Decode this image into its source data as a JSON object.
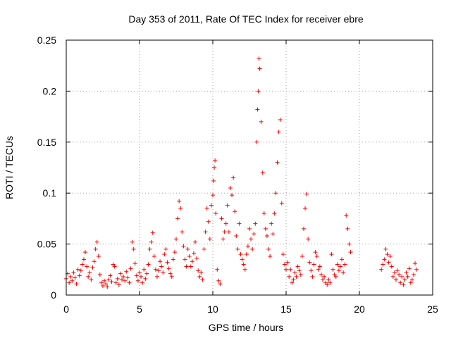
{
  "chart_data": {
    "type": "scatter",
    "title": "Day 353 of 2011, Rate Of TEC Index for receiver ebre",
    "xlabel": "GPS time / hours",
    "ylabel": "ROTI / TECUs",
    "xlim": [
      0,
      25
    ],
    "ylim": [
      0,
      0.25
    ],
    "grid": true,
    "marker": "plus",
    "color": "#ff0000",
    "x_ticks": [
      0,
      5,
      10,
      15,
      20,
      25
    ],
    "x_tick_labels": [
      "0",
      "5",
      "10",
      "15",
      "20",
      "25"
    ],
    "y_ticks": [
      0,
      0.05,
      0.1,
      0.15,
      0.2,
      0.25
    ],
    "y_tick_labels": [
      "0",
      "0.05",
      "0.1",
      "0.15",
      "0.2",
      "0.25"
    ],
    "series": [
      {
        "name": "ROTI",
        "points": [
          [
            0.0,
            0.016
          ],
          [
            0.1,
            0.021
          ],
          [
            0.2,
            0.012
          ],
          [
            0.3,
            0.018
          ],
          [
            0.4,
            0.014
          ],
          [
            0.5,
            0.022
          ],
          [
            0.6,
            0.017
          ],
          [
            0.7,
            0.011
          ],
          [
            0.8,
            0.025
          ],
          [
            0.9,
            0.019
          ],
          [
            1.0,
            0.024
          ],
          [
            1.1,
            0.03
          ],
          [
            1.2,
            0.035
          ],
          [
            1.3,
            0.042
          ],
          [
            1.4,
            0.028
          ],
          [
            1.5,
            0.018
          ],
          [
            1.6,
            0.022
          ],
          [
            1.7,
            0.015
          ],
          [
            1.8,
            0.027
          ],
          [
            1.9,
            0.033
          ],
          [
            2.0,
            0.045
          ],
          [
            2.1,
            0.052
          ],
          [
            2.2,
            0.038
          ],
          [
            2.3,
            0.02
          ],
          [
            2.4,
            0.012
          ],
          [
            2.5,
            0.009
          ],
          [
            2.6,
            0.014
          ],
          [
            2.7,
            0.011
          ],
          [
            2.8,
            0.008
          ],
          [
            2.9,
            0.015
          ],
          [
            3.0,
            0.019
          ],
          [
            3.1,
            0.013
          ],
          [
            3.2,
            0.03
          ],
          [
            3.3,
            0.028
          ],
          [
            3.4,
            0.012
          ],
          [
            3.5,
            0.016
          ],
          [
            3.6,
            0.01
          ],
          [
            3.7,
            0.021
          ],
          [
            3.8,
            0.015
          ],
          [
            3.9,
            0.018
          ],
          [
            4.0,
            0.014
          ],
          [
            4.1,
            0.023
          ],
          [
            4.2,
            0.017
          ],
          [
            4.3,
            0.012
          ],
          [
            4.4,
            0.026
          ],
          [
            4.5,
            0.052
          ],
          [
            4.6,
            0.045
          ],
          [
            4.7,
            0.031
          ],
          [
            4.8,
            0.019
          ],
          [
            4.9,
            0.014
          ],
          [
            5.0,
            0.022
          ],
          [
            5.1,
            0.018
          ],
          [
            5.2,
            0.012
          ],
          [
            5.3,
            0.025
          ],
          [
            5.4,
            0.016
          ],
          [
            5.5,
            0.021
          ],
          [
            5.6,
            0.03
          ],
          [
            5.7,
            0.045
          ],
          [
            5.8,
            0.052
          ],
          [
            5.9,
            0.061
          ],
          [
            6.0,
            0.038
          ],
          [
            6.1,
            0.025
          ],
          [
            6.2,
            0.018
          ],
          [
            6.3,
            0.024
          ],
          [
            6.4,
            0.033
          ],
          [
            6.5,
            0.028
          ],
          [
            6.6,
            0.022
          ],
          [
            6.7,
            0.04
          ],
          [
            6.8,
            0.045
          ],
          [
            6.9,
            0.032
          ],
          [
            7.0,
            0.026
          ],
          [
            7.1,
            0.021
          ],
          [
            7.2,
            0.018
          ],
          [
            7.3,
            0.035
          ],
          [
            7.4,
            0.042
          ],
          [
            7.5,
            0.055
          ],
          [
            7.6,
            0.075
          ],
          [
            7.7,
            0.092
          ],
          [
            7.8,
            0.085
          ],
          [
            7.9,
            0.062
          ],
          [
            8.0,
            0.048
          ],
          [
            8.1,
            0.035
          ],
          [
            8.2,
            0.028
          ],
          [
            8.3,
            0.045
          ],
          [
            8.4,
            0.038
          ],
          [
            8.5,
            0.028
          ],
          [
            8.6,
            0.033
          ],
          [
            8.7,
            0.041
          ],
          [
            8.8,
            0.052
          ],
          [
            8.9,
            0.036
          ],
          [
            9.0,
            0.024
          ],
          [
            9.1,
            0.018
          ],
          [
            9.2,
            0.022
          ],
          [
            9.3,
            0.015
          ],
          [
            9.4,
            0.045
          ],
          [
            9.5,
            0.062
          ],
          [
            9.6,
            0.085
          ],
          [
            9.7,
            0.072
          ],
          [
            9.8,
            0.055
          ],
          [
            9.9,
            0.088
          ],
          [
            10.0,
            0.098
          ],
          [
            10.05,
            0.112
          ],
          [
            10.1,
            0.125
          ],
          [
            10.15,
            0.132
          ],
          [
            10.2,
            0.08
          ],
          [
            10.3,
            0.025
          ],
          [
            10.4,
            0.014
          ],
          [
            10.5,
            0.011
          ],
          [
            10.6,
            0.075
          ],
          [
            10.7,
            0.055
          ],
          [
            10.8,
            0.062
          ],
          [
            10.9,
            0.07
          ],
          [
            11.0,
            0.088
          ],
          [
            11.1,
            0.062
          ],
          [
            11.2,
            0.105
          ],
          [
            11.3,
            0.098
          ],
          [
            11.4,
            0.115
          ],
          [
            11.5,
            0.082
          ],
          [
            11.6,
            0.058
          ],
          [
            11.7,
            0.045
          ],
          [
            11.8,
            0.07
          ],
          [
            11.9,
            0.04
          ],
          [
            12.0,
            0.035
          ],
          [
            12.1,
            0.03
          ],
          [
            12.2,
            0.025
          ],
          [
            12.3,
            0.04
          ],
          [
            12.4,
            0.048
          ],
          [
            12.5,
            0.065
          ],
          [
            12.6,
            0.055
          ],
          [
            12.7,
            0.045
          ],
          [
            12.8,
            0.06
          ],
          [
            12.9,
            0.07
          ],
          [
            13.0,
            0.15
          ],
          [
            13.05,
            0.182
          ],
          [
            13.1,
            0.2
          ],
          [
            13.15,
            0.232
          ],
          [
            13.2,
            0.222
          ],
          [
            13.3,
            0.17
          ],
          [
            13.4,
            0.12
          ],
          [
            13.5,
            0.08
          ],
          [
            13.6,
            0.065
          ],
          [
            13.7,
            0.058
          ],
          [
            13.8,
            0.045
          ],
          [
            13.9,
            0.038
          ],
          [
            14.0,
            0.07
          ],
          [
            14.1,
            0.06
          ],
          [
            14.2,
            0.08
          ],
          [
            14.3,
            0.1
          ],
          [
            14.4,
            0.13
          ],
          [
            14.5,
            0.16
          ],
          [
            14.6,
            0.172
          ],
          [
            14.7,
            0.09
          ],
          [
            14.8,
            0.04
          ],
          [
            14.9,
            0.03
          ],
          [
            15.0,
            0.025
          ],
          [
            15.1,
            0.032
          ],
          [
            15.2,
            0.018
          ],
          [
            15.3,
            0.025
          ],
          [
            15.4,
            0.012
          ],
          [
            15.5,
            0.015
          ],
          [
            15.6,
            0.022
          ],
          [
            15.7,
            0.018
          ],
          [
            15.8,
            0.028
          ],
          [
            15.9,
            0.024
          ],
          [
            16.0,
            0.02
          ],
          [
            16.1,
            0.038
          ],
          [
            16.2,
            0.065
          ],
          [
            16.3,
            0.085
          ],
          [
            16.4,
            0.099
          ],
          [
            16.5,
            0.055
          ],
          [
            16.6,
            0.032
          ],
          [
            16.7,
            0.024
          ],
          [
            16.8,
            0.018
          ],
          [
            16.9,
            0.03
          ],
          [
            17.0,
            0.042
          ],
          [
            17.1,
            0.038
          ],
          [
            17.2,
            0.025
          ],
          [
            17.3,
            0.028
          ],
          [
            17.4,
            0.02
          ],
          [
            17.5,
            0.015
          ],
          [
            17.6,
            0.018
          ],
          [
            17.7,
            0.012
          ],
          [
            17.8,
            0.01
          ],
          [
            17.9,
            0.015
          ],
          [
            18.0,
            0.012
          ],
          [
            18.1,
            0.04
          ],
          [
            18.2,
            0.025
          ],
          [
            18.3,
            0.02
          ],
          [
            18.4,
            0.018
          ],
          [
            18.5,
            0.03
          ],
          [
            18.6,
            0.024
          ],
          [
            18.7,
            0.028
          ],
          [
            18.8,
            0.035
          ],
          [
            18.9,
            0.022
          ],
          [
            19.0,
            0.03
          ],
          [
            19.1,
            0.078
          ],
          [
            19.2,
            0.065
          ],
          [
            19.3,
            0.05
          ],
          [
            19.4,
            0.042
          ],
          [
            21.5,
            0.025
          ],
          [
            21.6,
            0.03
          ],
          [
            21.7,
            0.035
          ],
          [
            21.8,
            0.045
          ],
          [
            21.9,
            0.04
          ],
          [
            22.0,
            0.032
          ],
          [
            22.1,
            0.038
          ],
          [
            22.2,
            0.028
          ],
          [
            22.3,
            0.018
          ],
          [
            22.4,
            0.022
          ],
          [
            22.5,
            0.015
          ],
          [
            22.6,
            0.024
          ],
          [
            22.7,
            0.02
          ],
          [
            22.8,
            0.012
          ],
          [
            22.9,
            0.018
          ],
          [
            23.0,
            0.01
          ],
          [
            23.1,
            0.015
          ],
          [
            23.2,
            0.022
          ],
          [
            23.3,
            0.018
          ],
          [
            23.4,
            0.026
          ],
          [
            23.5,
            0.012
          ],
          [
            23.6,
            0.015
          ],
          [
            23.7,
            0.02
          ],
          [
            23.8,
            0.031
          ],
          [
            23.9,
            0.025
          ]
        ]
      }
    ]
  }
}
